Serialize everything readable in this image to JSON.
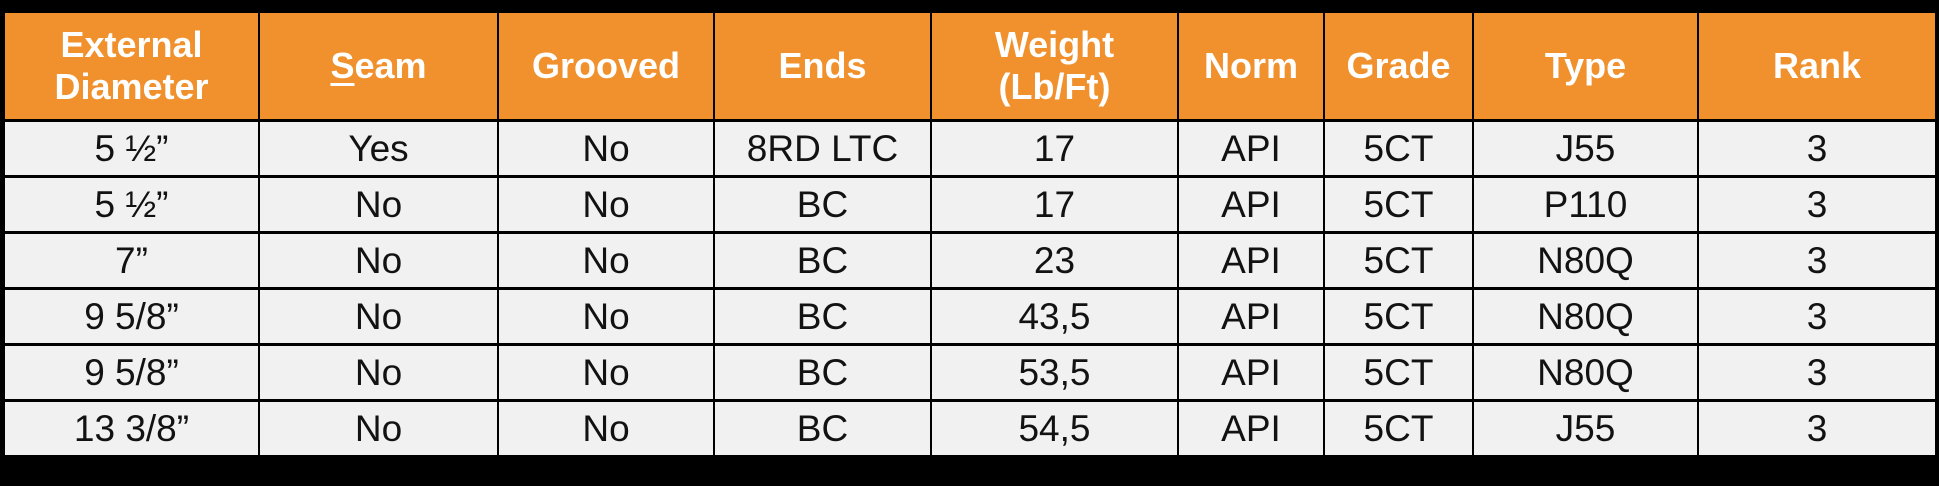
{
  "colors": {
    "header_bg": "#F0912D",
    "header_text": "#FFFFFF",
    "row_bg": "#F1F1F1",
    "body_text": "#121212",
    "border": "#000000",
    "surround": "#000000"
  },
  "table": {
    "headers": [
      {
        "label": "External Diameter",
        "underline_first_letter": false
      },
      {
        "label": "Seam",
        "underline_first_letter": true
      },
      {
        "label": "Grooved",
        "underline_first_letter": false
      },
      {
        "label": "Ends",
        "underline_first_letter": false
      },
      {
        "label": "Weight (Lb/Ft)",
        "underline_first_letter": false
      },
      {
        "label": "Norm",
        "underline_first_letter": false
      },
      {
        "label": "Grade",
        "underline_first_letter": false
      },
      {
        "label": "Type",
        "underline_first_letter": false
      },
      {
        "label": "Rank",
        "underline_first_letter": false
      }
    ],
    "rows": [
      [
        "5 ½”",
        "Yes",
        "No",
        "8RD LTC",
        "17",
        "API",
        "5CT",
        "J55",
        "3"
      ],
      [
        "5 ½”",
        "No",
        "No",
        "BC",
        "17",
        "API",
        "5CT",
        "P110",
        "3"
      ],
      [
        "7”",
        "No",
        "No",
        "BC",
        "23",
        "API",
        "5CT",
        "N80Q",
        "3"
      ],
      [
        "9 5/8”",
        "No",
        "No",
        "BC",
        "43,5",
        "API",
        "5CT",
        "N80Q",
        "3"
      ],
      [
        "9 5/8”",
        "No",
        "No",
        "BC",
        "53,5",
        "API",
        "5CT",
        "N80Q",
        "3"
      ],
      [
        "13 3/8”",
        "No",
        "No",
        "BC",
        "54,5",
        "API",
        "5CT",
        "J55",
        "3"
      ]
    ]
  },
  "chart_data": {
    "type": "table",
    "title": "",
    "columns": [
      "External Diameter",
      "Seam",
      "Grooved",
      "Ends",
      "Weight (Lb/Ft)",
      "Norm",
      "Grade",
      "Type",
      "Rank"
    ],
    "rows": [
      [
        "5 ½”",
        "Yes",
        "No",
        "8RD LTC",
        "17",
        "API",
        "5CT",
        "J55",
        "3"
      ],
      [
        "5 ½”",
        "No",
        "No",
        "BC",
        "17",
        "API",
        "5CT",
        "P110",
        "3"
      ],
      [
        "7”",
        "No",
        "No",
        "BC",
        "23",
        "API",
        "5CT",
        "N80Q",
        "3"
      ],
      [
        "9 5/8”",
        "No",
        "No",
        "BC",
        "43,5",
        "API",
        "5CT",
        "N80Q",
        "3"
      ],
      [
        "9 5/8”",
        "No",
        "No",
        "BC",
        "53,5",
        "API",
        "5CT",
        "N80Q",
        "3"
      ],
      [
        "13 3/8”",
        "No",
        "No",
        "BC",
        "54,5",
        "API",
        "5CT",
        "J55",
        "3"
      ]
    ]
  }
}
